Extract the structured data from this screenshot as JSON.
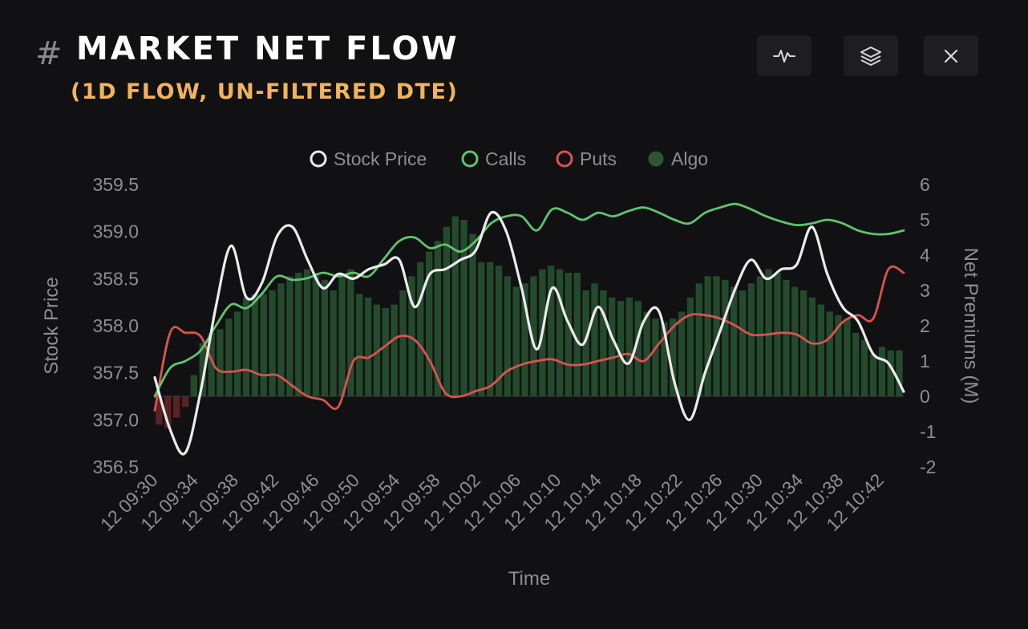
{
  "header": {
    "hash_symbol": "#",
    "title": "MARKET NET FLOW",
    "subtitle": "(1D FLOW, UN-FILTERED DTE)"
  },
  "toolbar": {
    "buttons": [
      {
        "name": "pulse-chart-button",
        "icon": "pulse-icon"
      },
      {
        "name": "layers-button",
        "icon": "layers-icon"
      },
      {
        "name": "close-button",
        "icon": "close-icon"
      }
    ]
  },
  "colors": {
    "background": "#111113",
    "stock_price": "#ebebeb",
    "calls": "#5ec46e",
    "puts": "#d9534f",
    "algo_positive": "#244a2c",
    "algo_negative": "#5a2222",
    "axis_text": "#8e8e92",
    "subtitle": "#f0b45a"
  },
  "chart_data": {
    "type": "line",
    "xlabel": "Time",
    "ylabel_left": "Stock Price",
    "ylabel_right": "Net Premiums (M)",
    "ylim_left": [
      356.5,
      359.5
    ],
    "ylim_right": [
      -2,
      6
    ],
    "yticks_left": [
      "359.5",
      "359.0",
      "358.5",
      "358.0",
      "357.5",
      "357.0",
      "356.5"
    ],
    "yticks_right": [
      "6",
      "5",
      "4",
      "3",
      "2",
      "1",
      "0",
      "-1",
      "-2"
    ],
    "legend_position": "top-center",
    "x_tick_labels": [
      "12 09:30",
      "12 09:34",
      "12 09:38",
      "12 09:42",
      "12 09:46",
      "12 09:50",
      "12 09:54",
      "12 09:58",
      "12 10:02",
      "12 10:06",
      "12 10:10",
      "12 10:14",
      "12 10:18",
      "12 10:22",
      "12 10:26",
      "12 10:30",
      "12 10:34",
      "12 10:38",
      "12 10:42"
    ],
    "series": [
      {
        "name": "Stock Price",
        "axis": "left",
        "values": [
          357.45,
          356.9,
          356.65,
          357.3,
          358.2,
          358.85,
          358.3,
          358.45,
          358.95,
          359.05,
          358.7,
          358.4,
          358.55,
          358.5,
          358.6,
          358.65,
          358.7,
          358.2,
          358.55,
          358.6,
          358.7,
          358.8,
          359.2,
          359.0,
          358.4,
          357.75,
          358.4,
          358.05,
          357.8,
          358.2,
          357.85,
          357.6,
          358.05,
          358.15,
          357.4,
          357.0,
          357.5,
          357.95,
          358.4,
          358.7,
          358.5,
          358.6,
          358.65,
          359.05,
          358.55,
          358.2,
          358.05,
          357.7,
          357.6,
          357.3
        ]
      },
      {
        "name": "Calls",
        "axis": "right",
        "values": [
          0,
          0.8,
          1.0,
          1.3,
          2.0,
          2.6,
          2.5,
          2.9,
          3.4,
          3.3,
          3.35,
          3.5,
          3.4,
          3.5,
          3.4,
          3.9,
          4.4,
          4.5,
          4.2,
          4.3,
          4.1,
          4.4,
          4.9,
          5.1,
          5.1,
          4.7,
          5.3,
          5.2,
          5.0,
          5.2,
          5.1,
          5.25,
          5.35,
          5.2,
          5.0,
          4.9,
          5.2,
          5.35,
          5.45,
          5.3,
          5.1,
          4.95,
          4.85,
          4.9,
          5.0,
          4.9,
          4.7,
          4.6,
          4.6,
          4.7
        ]
      },
      {
        "name": "Puts",
        "axis": "right",
        "values": [
          -0.4,
          1.8,
          1.8,
          1.7,
          0.8,
          0.7,
          0.75,
          0.6,
          0.6,
          0.3,
          0.0,
          -0.1,
          -0.3,
          1.0,
          1.1,
          1.4,
          1.7,
          1.6,
          1.0,
          0.1,
          0.0,
          0.15,
          0.3,
          0.7,
          0.9,
          1.0,
          1.05,
          0.9,
          0.9,
          1.0,
          1.1,
          1.2,
          1.0,
          1.5,
          2.0,
          2.3,
          2.3,
          2.2,
          2.0,
          1.75,
          1.75,
          1.8,
          1.75,
          1.5,
          1.6,
          2.1,
          2.3,
          2.2,
          3.6,
          3.5
        ]
      }
    ],
    "algo": {
      "name": "Algo",
      "axis": "right",
      "values": [
        -0.8,
        -0.9,
        -0.6,
        -0.3,
        0.6,
        1.5,
        1.8,
        1.9,
        2.2,
        2.4,
        2.8,
        2.9,
        2.9,
        3.0,
        3.2,
        3.4,
        3.5,
        3.6,
        3.5,
        3.3,
        3.0,
        3.4,
        3.6,
        2.9,
        2.8,
        2.6,
        2.5,
        2.6,
        3.0,
        3.4,
        3.8,
        4.1,
        4.4,
        4.8,
        5.1,
        5.0,
        4.6,
        3.8,
        3.8,
        3.7,
        3.4,
        3.1,
        3.2,
        3.4,
        3.6,
        3.7,
        3.6,
        3.5,
        3.5,
        3.0,
        3.2,
        3.0,
        2.8,
        2.7,
        2.8,
        2.7,
        2.4,
        2.2,
        2.1,
        2.2,
        2.4,
        2.8,
        3.2,
        3.4,
        3.4,
        3.3,
        3.1,
        3.0,
        3.2,
        3.4,
        3.6,
        3.5,
        3.3,
        3.1,
        3.0,
        2.8,
        2.6,
        2.4,
        2.3,
        2.2,
        1.8,
        1.6,
        1.2,
        1.4,
        1.3,
        1.3
      ]
    }
  }
}
